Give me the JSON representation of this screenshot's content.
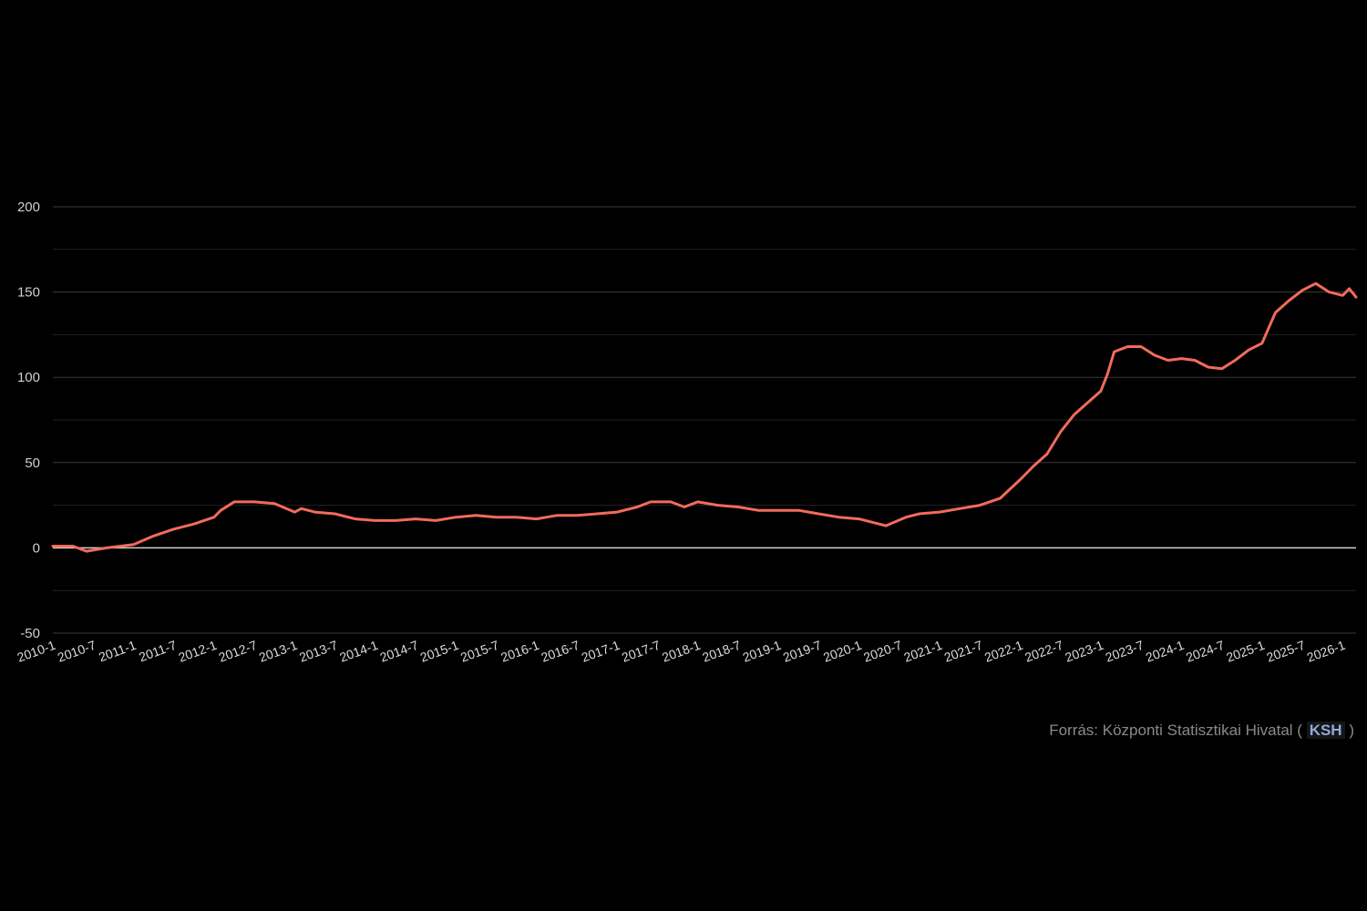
{
  "chart_data": {
    "type": "line",
    "title": "",
    "xlabel": "",
    "ylabel": "",
    "ylim": [
      -50,
      200
    ],
    "y_ticks": [
      -50,
      0,
      50,
      100,
      150,
      200
    ],
    "grid": true,
    "x_ticks": [
      "2010-1",
      "2010-7",
      "2011-1",
      "2011-7",
      "2012-1",
      "2012-7",
      "2013-1",
      "2013-7",
      "2014-1",
      "2014-7",
      "2015-1",
      "2015-7",
      "2016-1",
      "2016-7",
      "2017-1",
      "2017-7",
      "2018-1",
      "2018-7",
      "2019-1",
      "2019-7",
      "2020-1",
      "2020-7",
      "2021-1",
      "2021-7",
      "2022-1",
      "2022-7",
      "2023-1",
      "2023-7",
      "2024-1",
      "2024-7",
      "2025-1",
      "2025-7",
      "2026-1"
    ],
    "series": [
      {
        "color": "#f26b5b",
        "points": [
          [
            "2010-1",
            1
          ],
          [
            "2010-4",
            1
          ],
          [
            "2010-6",
            -2
          ],
          [
            "2010-9",
            0
          ],
          [
            "2011-1",
            2
          ],
          [
            "2011-4",
            7
          ],
          [
            "2011-7",
            11
          ],
          [
            "2011-10",
            14
          ],
          [
            "2012-1",
            18
          ],
          [
            "2012-2",
            22
          ],
          [
            "2012-4",
            27
          ],
          [
            "2012-7",
            27
          ],
          [
            "2012-10",
            26
          ],
          [
            "2013-1",
            21
          ],
          [
            "2013-2",
            23
          ],
          [
            "2013-4",
            21
          ],
          [
            "2013-7",
            20
          ],
          [
            "2013-10",
            17
          ],
          [
            "2014-1",
            16
          ],
          [
            "2014-4",
            16
          ],
          [
            "2014-7",
            17
          ],
          [
            "2014-10",
            16
          ],
          [
            "2015-1",
            18
          ],
          [
            "2015-4",
            19
          ],
          [
            "2015-7",
            18
          ],
          [
            "2015-10",
            18
          ],
          [
            "2016-1",
            17
          ],
          [
            "2016-4",
            19
          ],
          [
            "2016-7",
            19
          ],
          [
            "2016-10",
            20
          ],
          [
            "2017-1",
            21
          ],
          [
            "2017-4",
            24
          ],
          [
            "2017-6",
            27
          ],
          [
            "2017-9",
            27
          ],
          [
            "2017-11",
            24
          ],
          [
            "2018-1",
            27
          ],
          [
            "2018-4",
            25
          ],
          [
            "2018-7",
            24
          ],
          [
            "2018-10",
            22
          ],
          [
            "2019-1",
            22
          ],
          [
            "2019-4",
            22
          ],
          [
            "2019-7",
            20
          ],
          [
            "2019-10",
            18
          ],
          [
            "2020-1",
            17
          ],
          [
            "2020-4",
            14
          ],
          [
            "2020-5",
            13
          ],
          [
            "2020-8",
            18
          ],
          [
            "2020-10",
            20
          ],
          [
            "2021-1",
            21
          ],
          [
            "2021-4",
            23
          ],
          [
            "2021-7",
            25
          ],
          [
            "2021-10",
            29
          ],
          [
            "2022-1",
            40
          ],
          [
            "2022-3",
            48
          ],
          [
            "2022-5",
            55
          ],
          [
            "2022-7",
            68
          ],
          [
            "2022-9",
            78
          ],
          [
            "2022-11",
            85
          ],
          [
            "2023-1",
            92
          ],
          [
            "2023-2",
            102
          ],
          [
            "2023-3",
            115
          ],
          [
            "2023-5",
            118
          ],
          [
            "2023-7",
            118
          ],
          [
            "2023-9",
            113
          ],
          [
            "2023-11",
            110
          ],
          [
            "2024-1",
            111
          ],
          [
            "2024-3",
            110
          ],
          [
            "2024-5",
            106
          ],
          [
            "2024-7",
            105
          ],
          [
            "2024-9",
            110
          ],
          [
            "2024-11",
            116
          ],
          [
            "2025-1",
            120
          ],
          [
            "2025-3",
            138
          ],
          [
            "2025-5",
            145
          ],
          [
            "2025-7",
            151
          ],
          [
            "2025-9",
            155
          ],
          [
            "2025-11",
            150
          ],
          [
            "2026-1",
            148
          ],
          [
            "2026-2",
            152
          ],
          [
            "2026-3",
            147
          ]
        ]
      }
    ]
  },
  "source": {
    "prefix": "Forrás: Központi Statisztikai Hivatal (",
    "link": "KSH",
    "suffix": ")"
  }
}
